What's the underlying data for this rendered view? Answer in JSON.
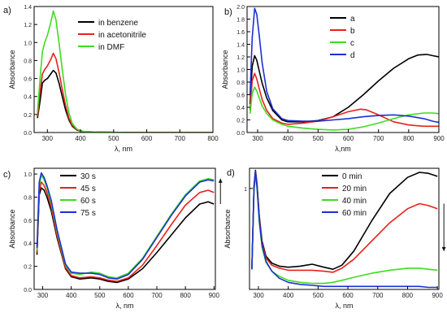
{
  "chart_data": [
    {
      "type": "line",
      "panel_label": "a)",
      "xlabel": "λ, nm",
      "ylabel": "Absorbance",
      "xlim": [
        260,
        800
      ],
      "ylim": [
        0,
        1.4
      ],
      "xticks": [
        300,
        400,
        500,
        600,
        700,
        800
      ],
      "yticks": [
        0.0,
        0.2,
        0.4,
        0.6,
        0.8,
        1.0,
        1.2,
        1.4
      ],
      "ytick_labels": [
        "0.0",
        "0.2",
        "0.4",
        "0.6",
        "0.8",
        "1.0",
        "1.2",
        "1.4"
      ],
      "legend_position": "top-right",
      "series": [
        {
          "name": "in benzene",
          "color": "#000000",
          "x": [
            270,
            278,
            285,
            292,
            300,
            310,
            318,
            326,
            335,
            345,
            355,
            365,
            375,
            390,
            410,
            450,
            550,
            800
          ],
          "y": [
            0.16,
            0.35,
            0.55,
            0.58,
            0.6,
            0.65,
            0.69,
            0.66,
            0.55,
            0.4,
            0.25,
            0.14,
            0.07,
            0.025,
            0.01,
            0.005,
            0.0,
            0.0
          ]
        },
        {
          "name": "in acetonitrile",
          "color": "#e8211a",
          "x": [
            270,
            278,
            285,
            292,
            300,
            310,
            318,
            326,
            335,
            345,
            355,
            365,
            375,
            390,
            410,
            450,
            550,
            800
          ],
          "y": [
            0.18,
            0.45,
            0.65,
            0.7,
            0.74,
            0.81,
            0.88,
            0.82,
            0.67,
            0.48,
            0.3,
            0.16,
            0.08,
            0.03,
            0.01,
            0.005,
            0.0,
            0.0
          ]
        },
        {
          "name": "in DMF",
          "color": "#3ddc1f",
          "x": [
            270,
            278,
            285,
            292,
            300,
            310,
            318,
            326,
            335,
            345,
            355,
            365,
            375,
            390,
            410,
            450,
            550,
            800
          ],
          "y": [
            0.22,
            0.6,
            0.9,
            1.0,
            1.08,
            1.22,
            1.35,
            1.25,
            1.0,
            0.7,
            0.42,
            0.22,
            0.1,
            0.035,
            0.012,
            0.005,
            0.0,
            0.0
          ]
        }
      ]
    },
    {
      "type": "line",
      "panel_label": "b)",
      "xlabel": "λ,nm",
      "ylabel": "Absorbance",
      "xlim": [
        265,
        900
      ],
      "ylim": [
        0,
        2.0
      ],
      "xticks": [
        300,
        400,
        500,
        600,
        700,
        800,
        900
      ],
      "yticks": [
        0.0,
        0.2,
        0.4,
        0.6,
        0.8,
        1.0,
        1.2,
        1.4,
        1.6,
        1.8,
        2.0
      ],
      "ytick_labels": [
        "0.0",
        "0.2",
        "0.4",
        "0.6",
        "0.8",
        "1.0",
        "1.2",
        "1.4",
        "1.6",
        "1.8",
        "2.0"
      ],
      "legend_position": "top-right",
      "series": [
        {
          "name": "a",
          "color": "#000000",
          "x": [
            275,
            282,
            290,
            297,
            305,
            315,
            330,
            350,
            380,
            400,
            450,
            500,
            550,
            600,
            650,
            700,
            750,
            800,
            830,
            860,
            880,
            900
          ],
          "y": [
            0.45,
            1.05,
            1.22,
            1.15,
            0.98,
            0.78,
            0.55,
            0.35,
            0.2,
            0.17,
            0.17,
            0.19,
            0.25,
            0.4,
            0.6,
            0.82,
            1.02,
            1.17,
            1.23,
            1.24,
            1.22,
            1.2
          ]
        },
        {
          "name": "b",
          "color": "#e8211a",
          "x": [
            275,
            282,
            290,
            297,
            305,
            315,
            330,
            350,
            380,
            400,
            450,
            500,
            550,
            600,
            640,
            660,
            700,
            750,
            800,
            850,
            900
          ],
          "y": [
            0.35,
            0.82,
            0.94,
            0.85,
            0.7,
            0.52,
            0.35,
            0.22,
            0.15,
            0.13,
            0.15,
            0.18,
            0.25,
            0.33,
            0.37,
            0.36,
            0.28,
            0.17,
            0.12,
            0.1,
            0.1
          ]
        },
        {
          "name": "c",
          "color": "#3ddc1f",
          "x": [
            275,
            282,
            290,
            297,
            305,
            315,
            330,
            350,
            380,
            400,
            450,
            500,
            550,
            600,
            650,
            700,
            750,
            800,
            850,
            880,
            900
          ],
          "y": [
            0.3,
            0.62,
            0.72,
            0.66,
            0.55,
            0.42,
            0.3,
            0.2,
            0.13,
            0.1,
            0.07,
            0.05,
            0.04,
            0.05,
            0.09,
            0.15,
            0.22,
            0.28,
            0.31,
            0.31,
            0.3
          ]
        },
        {
          "name": "d",
          "color": "#1a2fd6",
          "x": [
            275,
            282,
            290,
            297,
            305,
            315,
            330,
            350,
            380,
            400,
            450,
            500,
            550,
            600,
            650,
            700,
            750,
            800,
            850,
            880,
            900
          ],
          "y": [
            0.6,
            1.5,
            1.97,
            1.88,
            1.55,
            1.1,
            0.65,
            0.38,
            0.22,
            0.19,
            0.18,
            0.18,
            0.2,
            0.22,
            0.25,
            0.27,
            0.28,
            0.26,
            0.22,
            0.18,
            0.16
          ]
        }
      ]
    },
    {
      "type": "line",
      "panel_label": "c)",
      "xlabel": "λ, nm",
      "ylabel": "Absorbance",
      "xlim": [
        270,
        905
      ],
      "ylim": [
        0,
        1.05
      ],
      "xticks": [
        300,
        400,
        500,
        600,
        700,
        800,
        900
      ],
      "yticks": [
        0.0,
        0.2,
        0.4,
        0.6,
        0.8,
        1.0
      ],
      "ytick_labels": [
        "0.0",
        "0.2",
        "0.4",
        "0.6",
        "0.8",
        "1.0"
      ],
      "legend_position": "top-left",
      "arrow": {
        "x": 900,
        "y_from": 0.74,
        "y_to": 0.96,
        "direction": "up"
      },
      "series": [
        {
          "name": "30 s",
          "color": "#000000",
          "x": [
            280,
            288,
            295,
            305,
            315,
            330,
            350,
            380,
            400,
            430,
            470,
            500,
            530,
            560,
            600,
            650,
            700,
            750,
            800,
            850,
            880,
            900
          ],
          "y": [
            0.3,
            0.82,
            0.88,
            0.86,
            0.8,
            0.68,
            0.45,
            0.18,
            0.11,
            0.09,
            0.1,
            0.09,
            0.07,
            0.06,
            0.09,
            0.18,
            0.32,
            0.47,
            0.62,
            0.74,
            0.76,
            0.74
          ]
        },
        {
          "name": "45 s",
          "color": "#e8211a",
          "x": [
            280,
            288,
            295,
            305,
            315,
            330,
            350,
            380,
            400,
            430,
            470,
            500,
            530,
            560,
            600,
            650,
            700,
            750,
            800,
            850,
            880,
            900
          ],
          "y": [
            0.32,
            0.85,
            0.93,
            0.9,
            0.84,
            0.71,
            0.47,
            0.19,
            0.12,
            0.1,
            0.11,
            0.1,
            0.08,
            0.07,
            0.1,
            0.21,
            0.38,
            0.56,
            0.73,
            0.84,
            0.86,
            0.84
          ]
        },
        {
          "name": "60 s",
          "color": "#3ddc1f",
          "x": [
            280,
            288,
            295,
            305,
            315,
            330,
            350,
            380,
            400,
            430,
            470,
            500,
            530,
            560,
            600,
            650,
            700,
            750,
            800,
            850,
            880,
            900
          ],
          "y": [
            0.34,
            0.9,
            0.99,
            0.95,
            0.88,
            0.75,
            0.5,
            0.21,
            0.14,
            0.13,
            0.15,
            0.14,
            0.11,
            0.1,
            0.14,
            0.27,
            0.46,
            0.65,
            0.82,
            0.94,
            0.96,
            0.95
          ]
        },
        {
          "name": "75 s",
          "color": "#1a2fd6",
          "x": [
            280,
            288,
            295,
            305,
            315,
            330,
            350,
            380,
            400,
            430,
            470,
            500,
            530,
            560,
            600,
            650,
            700,
            750,
            800,
            850,
            880,
            900
          ],
          "y": [
            0.36,
            0.93,
            1.01,
            0.97,
            0.9,
            0.77,
            0.52,
            0.22,
            0.15,
            0.14,
            0.14,
            0.13,
            0.1,
            0.09,
            0.13,
            0.26,
            0.45,
            0.64,
            0.81,
            0.93,
            0.95,
            0.94
          ]
        }
      ]
    },
    {
      "type": "line",
      "panel_label": "d)",
      "xlabel": "λ, nm",
      "ylabel": "Absorbance",
      "xlim": [
        270,
        905
      ],
      "ylim": [
        0,
        1.2
      ],
      "xticks": [
        300,
        400,
        500,
        600,
        700,
        800,
        900
      ],
      "yticks": [
        1
      ],
      "ytick_labels": [
        "1"
      ],
      "legend_position": "top-right",
      "arrow": {
        "x": 900,
        "y_from": 0.85,
        "y_to": 0.38,
        "direction": "down"
      },
      "series": [
        {
          "name": "0 min",
          "color": "#000000",
          "x": [
            278,
            285,
            290,
            295,
            303,
            312,
            325,
            345,
            370,
            400,
            440,
            480,
            520,
            550,
            580,
            620,
            680,
            740,
            800,
            840,
            870,
            900
          ],
          "y": [
            0.2,
            1.02,
            1.18,
            1.05,
            0.72,
            0.48,
            0.33,
            0.26,
            0.23,
            0.22,
            0.23,
            0.25,
            0.22,
            0.2,
            0.24,
            0.38,
            0.68,
            0.95,
            1.11,
            1.16,
            1.15,
            1.12
          ]
        },
        {
          "name": "20 min",
          "color": "#e8211a",
          "x": [
            278,
            285,
            290,
            295,
            303,
            312,
            325,
            345,
            370,
            400,
            440,
            480,
            520,
            550,
            580,
            620,
            680,
            740,
            800,
            840,
            870,
            900
          ],
          "y": [
            0.2,
            1.0,
            1.16,
            1.03,
            0.7,
            0.46,
            0.31,
            0.24,
            0.21,
            0.19,
            0.19,
            0.19,
            0.18,
            0.17,
            0.21,
            0.3,
            0.48,
            0.66,
            0.8,
            0.85,
            0.83,
            0.8
          ]
        },
        {
          "name": "40 min",
          "color": "#3ddc1f",
          "x": [
            278,
            285,
            290,
            295,
            303,
            312,
            325,
            345,
            370,
            400,
            440,
            480,
            520,
            550,
            580,
            620,
            680,
            740,
            800,
            840,
            870,
            900
          ],
          "y": [
            0.2,
            0.98,
            1.14,
            1.0,
            0.66,
            0.42,
            0.27,
            0.18,
            0.13,
            0.09,
            0.07,
            0.06,
            0.06,
            0.07,
            0.09,
            0.12,
            0.16,
            0.19,
            0.21,
            0.21,
            0.2,
            0.19
          ]
        },
        {
          "name": "60 min",
          "color": "#1a2fd6",
          "x": [
            278,
            285,
            290,
            295,
            303,
            312,
            325,
            345,
            370,
            400,
            440,
            480,
            520,
            550,
            580,
            620,
            680,
            740,
            800,
            840,
            870,
            900
          ],
          "y": [
            0.2,
            0.99,
            1.17,
            1.02,
            0.68,
            0.44,
            0.28,
            0.18,
            0.11,
            0.07,
            0.05,
            0.04,
            0.03,
            0.03,
            0.03,
            0.03,
            0.03,
            0.03,
            0.03,
            0.03,
            0.02,
            0.02
          ]
        }
      ]
    }
  ]
}
